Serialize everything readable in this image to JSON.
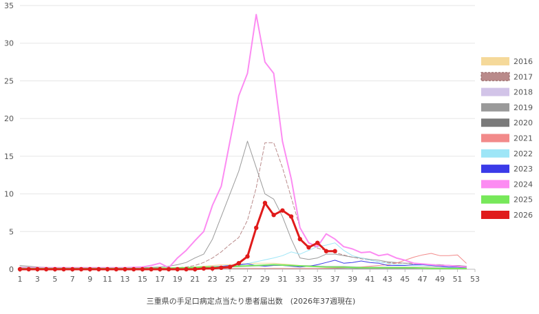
{
  "chart_data": {
    "type": "line",
    "title": "",
    "xlabel": "三重県の手足口病定点当たり患者届出数　(2026年37週現在)",
    "ylabel": "",
    "xlim": [
      1,
      53
    ],
    "ylim": [
      0,
      35
    ],
    "x_ticks": [
      1,
      3,
      5,
      7,
      9,
      11,
      13,
      15,
      17,
      19,
      21,
      23,
      25,
      27,
      29,
      31,
      33,
      35,
      37,
      39,
      41,
      43,
      45,
      47,
      49,
      51,
      53
    ],
    "y_ticks": [
      0,
      5,
      10,
      15,
      20,
      25,
      30,
      35
    ],
    "grid": "horizontal",
    "legend_position": "right",
    "series": [
      {
        "name": "2016",
        "color": "#f5d99a",
        "dash": false,
        "width": 1,
        "markers": false,
        "x": [
          1,
          5,
          10,
          15,
          20,
          21,
          22,
          23,
          24,
          25,
          26,
          27,
          28,
          29,
          30,
          31,
          32,
          33,
          34,
          35,
          36,
          37,
          38,
          40,
          42,
          44,
          46,
          48,
          50,
          52
        ],
        "y": [
          0.1,
          0.1,
          0.1,
          0.1,
          0.2,
          0.3,
          0.4,
          0.5,
          0.6,
          0.6,
          0.7,
          0.7,
          0.8,
          0.8,
          0.8,
          0.7,
          0.6,
          0.5,
          0.4,
          0.4,
          0.3,
          0.3,
          0.3,
          0.3,
          0.3,
          0.3,
          0.3,
          0.3,
          0.3,
          0.3
        ]
      },
      {
        "name": "2017",
        "color": "#b98a8a",
        "dash": true,
        "width": 1,
        "markers": false,
        "x": [
          1,
          5,
          10,
          15,
          17,
          19,
          20,
          21,
          22,
          23,
          24,
          25,
          26,
          27,
          28,
          29,
          30,
          31,
          32,
          33,
          34,
          35,
          36,
          37,
          38,
          39,
          40,
          41,
          42,
          43,
          44,
          45,
          46,
          47,
          48,
          49,
          50,
          51,
          52
        ],
        "y": [
          0.1,
          0.1,
          0.1,
          0.1,
          0.1,
          0.2,
          0.3,
          0.5,
          0.9,
          1.5,
          2.3,
          3.3,
          4.2,
          6.5,
          10.8,
          16.8,
          16.8,
          13.5,
          9.5,
          5.5,
          3.5,
          2.8,
          2.5,
          2.2,
          1.9,
          1.6,
          1.4,
          1.2,
          1.0,
          0.9,
          0.8,
          0.8,
          0.7,
          0.7,
          0.6,
          0.6,
          0.5,
          0.5,
          0.4
        ]
      },
      {
        "name": "2018",
        "color": "#d2c4e8",
        "dash": false,
        "width": 1,
        "markers": false,
        "x": [
          1,
          5,
          10,
          15,
          20,
          25,
          28,
          30,
          32,
          34,
          36,
          38,
          40,
          42,
          44,
          46,
          48,
          50,
          52
        ],
        "y": [
          0.1,
          0.1,
          0.1,
          0.1,
          0.2,
          0.3,
          0.4,
          0.5,
          0.5,
          0.5,
          0.4,
          0.4,
          0.3,
          0.3,
          0.3,
          0.3,
          0.2,
          0.2,
          0.2
        ]
      },
      {
        "name": "2019",
        "color": "#9a9a9a",
        "dash": false,
        "width": 1,
        "markers": false,
        "x": [
          1,
          3,
          5,
          7,
          9,
          11,
          13,
          15,
          17,
          18,
          19,
          20,
          21,
          22,
          23,
          24,
          25,
          26,
          27,
          28,
          29,
          30,
          31,
          32,
          33,
          34,
          35,
          36,
          37,
          38,
          39,
          40,
          41,
          42,
          43,
          44,
          45,
          46,
          47,
          48,
          49,
          50,
          51,
          52
        ],
        "y": [
          0.5,
          0.3,
          0.2,
          0.2,
          0.2,
          0.2,
          0.2,
          0.2,
          0.3,
          0.4,
          0.6,
          0.9,
          1.5,
          2.0,
          4.0,
          7.0,
          10.0,
          13.0,
          17.0,
          13.5,
          10.0,
          9.3,
          7.0,
          4.0,
          1.5,
          1.3,
          1.5,
          2.0,
          2.0,
          1.8,
          1.6,
          1.5,
          1.3,
          1.2,
          1.0,
          0.9,
          0.8,
          0.8,
          0.7,
          0.6,
          0.6,
          0.5,
          0.5,
          0.4
        ]
      },
      {
        "name": "2020",
        "color": "#7a7a7a",
        "dash": false,
        "width": 1,
        "markers": false,
        "x": [
          1,
          3,
          5,
          7,
          9,
          11,
          13,
          15,
          17,
          19,
          21,
          23,
          25,
          27,
          29,
          31,
          33,
          35,
          37,
          39,
          41,
          43,
          45,
          47,
          49,
          51,
          52
        ],
        "y": [
          0.3,
          0.2,
          0.2,
          0.1,
          0.1,
          0.1,
          0.1,
          0.1,
          0.1,
          0.1,
          0.1,
          0.1,
          0.1,
          0.1,
          0.1,
          0.1,
          0.1,
          0.1,
          0.1,
          0.1,
          0.1,
          0.1,
          0.1,
          0.1,
          0.1,
          0.1,
          0.1
        ]
      },
      {
        "name": "2021",
        "color": "#f28a8a",
        "dash": false,
        "width": 1,
        "markers": false,
        "x": [
          1,
          5,
          10,
          15,
          20,
          25,
          30,
          35,
          38,
          40,
          42,
          43,
          44,
          45,
          46,
          47,
          48,
          49,
          50,
          51,
          52
        ],
        "y": [
          0.1,
          0.1,
          0.1,
          0.1,
          0.1,
          0.1,
          0.1,
          0.1,
          0.2,
          0.3,
          0.5,
          0.6,
          0.8,
          1.2,
          1.6,
          1.9,
          2.1,
          1.8,
          1.8,
          1.9,
          0.8
        ]
      },
      {
        "name": "2022",
        "color": "#9ee6f7",
        "dash": false,
        "width": 1,
        "markers": false,
        "x": [
          1,
          5,
          10,
          15,
          20,
          24,
          26,
          28,
          30,
          31,
          32,
          33,
          34,
          35,
          36,
          37,
          38,
          39,
          40,
          41,
          42,
          43,
          44,
          46,
          48,
          50,
          52
        ],
        "y": [
          0.1,
          0.1,
          0.1,
          0.1,
          0.2,
          0.3,
          0.5,
          1.0,
          1.5,
          1.8,
          2.3,
          2.0,
          2.5,
          3.0,
          3.2,
          3.5,
          2.5,
          1.8,
          1.5,
          1.2,
          1.0,
          0.8,
          0.6,
          0.5,
          0.4,
          0.3,
          0.3
        ]
      },
      {
        "name": "2023",
        "color": "#3b3be8",
        "dash": false,
        "width": 1,
        "markers": false,
        "x": [
          1,
          5,
          10,
          15,
          20,
          22,
          24,
          26,
          27,
          28,
          29,
          30,
          31,
          32,
          33,
          34,
          35,
          36,
          37,
          38,
          39,
          40,
          41,
          42,
          43,
          44,
          45,
          46,
          47,
          48,
          49,
          50,
          51,
          52
        ],
        "y": [
          0.1,
          0.1,
          0.1,
          0.1,
          0.2,
          0.3,
          0.4,
          0.6,
          0.7,
          0.5,
          0.4,
          0.5,
          0.5,
          0.4,
          0.3,
          0.4,
          0.6,
          0.9,
          1.2,
          0.8,
          0.9,
          1.1,
          0.9,
          0.8,
          0.5,
          0.5,
          0.5,
          0.6,
          0.6,
          0.5,
          0.4,
          0.3,
          0.3,
          0.2
        ]
      },
      {
        "name": "2024",
        "color": "#fc8bf2",
        "dash": false,
        "width": 2,
        "markers": false,
        "x": [
          1,
          3,
          5,
          7,
          9,
          11,
          13,
          15,
          16,
          17,
          18,
          19,
          20,
          21,
          22,
          23,
          24,
          25,
          26,
          27,
          28,
          29,
          30,
          31,
          32,
          33,
          34,
          35,
          36,
          37,
          38,
          39,
          40,
          41,
          42,
          43,
          44,
          45,
          46,
          47,
          48,
          49,
          50,
          51,
          52
        ],
        "y": [
          0.2,
          0.2,
          0.2,
          0.2,
          0.2,
          0.2,
          0.2,
          0.3,
          0.5,
          0.8,
          0.2,
          1.5,
          2.5,
          3.8,
          5.0,
          8.5,
          11.0,
          17.0,
          23.0,
          26.0,
          33.8,
          27.5,
          26.0,
          17.0,
          12.0,
          5.5,
          3.5,
          3.0,
          4.7,
          4.0,
          3.0,
          2.7,
          2.2,
          2.3,
          1.8,
          2.0,
          1.5,
          1.2,
          0.8,
          0.7,
          0.6,
          0.5,
          0.5,
          0.4,
          0.3
        ]
      },
      {
        "name": "2025",
        "color": "#77e85a",
        "dash": false,
        "width": 2,
        "markers": false,
        "x": [
          1,
          5,
          10,
          15,
          20,
          22,
          24,
          26,
          28,
          30,
          32,
          34,
          36,
          38,
          40,
          42,
          44,
          46,
          48,
          50,
          52
        ],
        "y": [
          0.1,
          0.1,
          0.1,
          0.1,
          0.2,
          0.3,
          0.3,
          0.4,
          0.5,
          0.6,
          0.5,
          0.4,
          0.3,
          0.3,
          0.2,
          0.2,
          0.2,
          0.2,
          0.1,
          0.1,
          0.1
        ]
      },
      {
        "name": "2026",
        "color": "#e01b1b",
        "dash": false,
        "width": 3,
        "markers": true,
        "x": [
          1,
          2,
          3,
          4,
          5,
          6,
          7,
          8,
          9,
          10,
          11,
          12,
          13,
          14,
          15,
          16,
          17,
          18,
          19,
          20,
          21,
          22,
          23,
          24,
          25,
          26,
          27,
          28,
          29,
          30,
          31,
          32,
          33,
          34,
          35,
          36,
          37
        ],
        "y": [
          0,
          0,
          0,
          0,
          0,
          0,
          0,
          0,
          0,
          0,
          0,
          0,
          0,
          0,
          0,
          0,
          0,
          0,
          0,
          0,
          0,
          0.1,
          0.1,
          0.2,
          0.3,
          0.8,
          1.7,
          5.5,
          8.8,
          7.2,
          7.8,
          7.0,
          4.0,
          2.9,
          3.5,
          2.4,
          2.4
        ]
      }
    ]
  }
}
